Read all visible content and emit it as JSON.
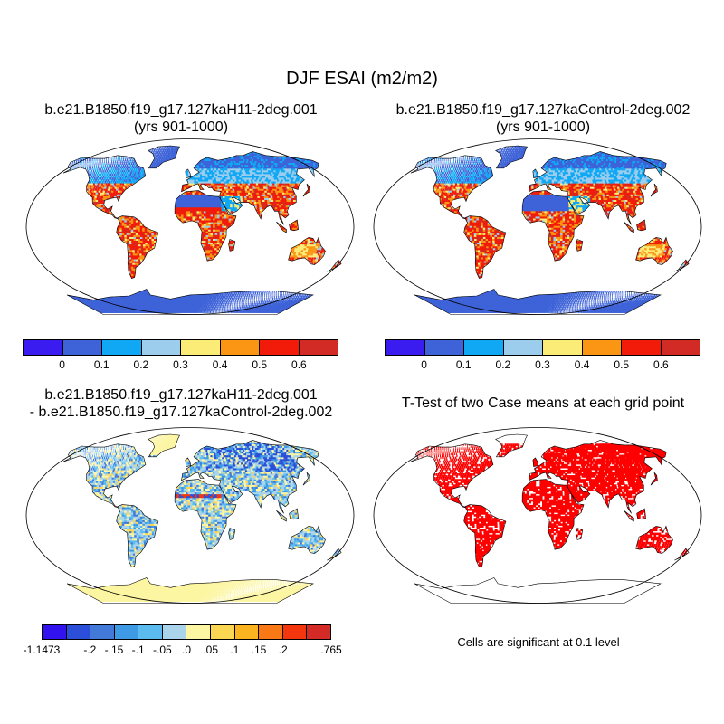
{
  "title": "DJF ESAI (m2/m2)",
  "panels": [
    {
      "title_line1": "b.e21.B1850.f19_g17.127kaH11-2deg.001",
      "title_line2": "(yrs 901-1000)",
      "kind": "field"
    },
    {
      "title_line1": "b.e21.B1850.f19_g17.127kaControl-2deg.002",
      "title_line2": "(yrs 901-1000)",
      "kind": "field"
    },
    {
      "title_line1": "b.e21.B1850.f19_g17.127kaH11-2deg.001",
      "title_line2": "- b.e21.B1850.f19_g17.127kaControl-2deg.002",
      "kind": "difference"
    },
    {
      "title_line1": "T-Test of two Case means at each grid point",
      "title_line2": "",
      "kind": "significance"
    }
  ],
  "colorbar_field": {
    "colors": [
      "#3b1cf0",
      "#3e63d8",
      "#10a8f5",
      "#9ccdec",
      "#fbec77",
      "#fb9614",
      "#f21b0a",
      "#d22a24"
    ],
    "labels": [
      "0",
      "0.1",
      "0.2",
      "0.3",
      "0.4",
      "0.5",
      "0.6"
    ]
  },
  "colorbar_diff": {
    "colors": [
      "#3212ee",
      "#2b4fd8",
      "#4379d9",
      "#3f9ae6",
      "#5cbbee",
      "#a9d4ec",
      "#fcf6a2",
      "#fbd653",
      "#fbb41f",
      "#f87916",
      "#f4360e",
      "#d52b26"
    ],
    "labels": [
      "-1.1473",
      "-.2",
      "-.15",
      "-.1",
      "-.05",
      ".0",
      ".05",
      ".1",
      ".15",
      ".2",
      ".765"
    ]
  },
  "significance_note": "Cells are significant at 0.1 level",
  "significance_color": "#ff0000"
}
